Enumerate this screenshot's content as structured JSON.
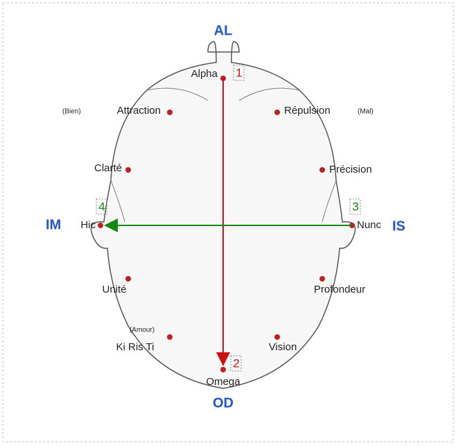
{
  "axes": {
    "top": "AL",
    "bottom": "OD",
    "left": "IM",
    "right": "IS"
  },
  "points": [
    {
      "label": "Alpha"
    },
    {
      "label": "Attraction",
      "note": "(Bien)"
    },
    {
      "label": "Répulsion",
      "note": "(Mal)"
    },
    {
      "label": "Clarté"
    },
    {
      "label": "Précision"
    },
    {
      "label": "Hic"
    },
    {
      "label": "Nunc"
    },
    {
      "label": "Unité"
    },
    {
      "label": "Profondeur"
    },
    {
      "label": "Ki Ris Ti",
      "note": "(Amour)"
    },
    {
      "label": "Vision"
    },
    {
      "label": "Omega"
    }
  ],
  "markers": [
    "1",
    "2",
    "3",
    "4"
  ]
}
